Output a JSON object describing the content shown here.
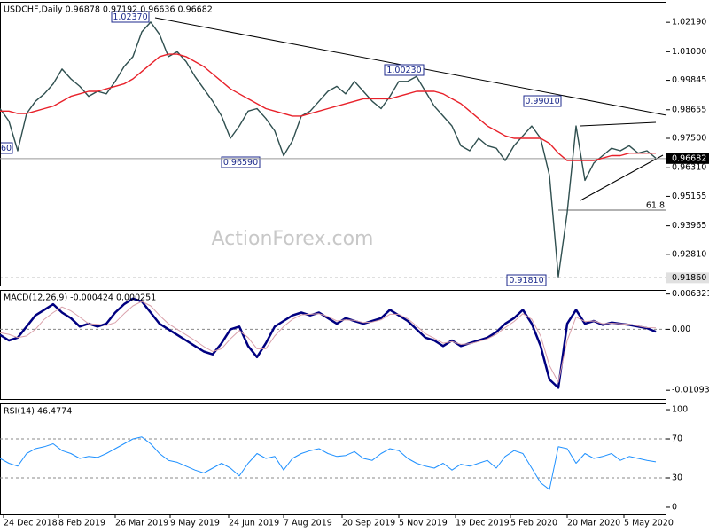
{
  "chart_data": [
    {
      "type": "line",
      "title": "USDCHF,Daily 0.96878 0.97192 0.96636 0.96682",
      "watermark": "ActionForex.com",
      "annotations": [
        "1.02370",
        "0.96590",
        "1.00230",
        "0.99010",
        "0.91810",
        "60",
        "61.8"
      ],
      "x": [
        0,
        5,
        10,
        15,
        20,
        25,
        30,
        35,
        40,
        45,
        50,
        55,
        60,
        65,
        70,
        75,
        80,
        85,
        90,
        95,
        100,
        105,
        110,
        115,
        120,
        125,
        130,
        135,
        140,
        145,
        150,
        155,
        160,
        165,
        170,
        175,
        180,
        185,
        190,
        195,
        200,
        205,
        210,
        215,
        220,
        225,
        230,
        235,
        240,
        245,
        250,
        255,
        260,
        265,
        270,
        275,
        280,
        285,
        290,
        295,
        300,
        305,
        310,
        315,
        320,
        325,
        330,
        335,
        340,
        345,
        350,
        355,
        360,
        365,
        370
      ],
      "xlim": [
        0,
        376
      ],
      "ylim": [
        0.9155,
        1.0302
      ],
      "yticks": [
        {
          "value": 1.0219,
          "label": "1.02190"
        },
        {
          "value": 1.01,
          "label": "1.01000"
        },
        0.99845,
        0.98655,
        {
          "value": 0.975,
          "label": "0.97500"
        },
        {
          "value": 0.9631,
          "label": "0.96310"
        },
        0.95155,
        0.93965,
        {
          "value": 0.9281,
          "label": "0.92810"
        }
      ],
      "price_labels": [
        {
          "value": 0.96682,
          "label": "0.96682",
          "color": "#000000"
        },
        {
          "value": 0.9186,
          "label": "0.91860",
          "color": "#e0e0e0"
        }
      ],
      "series": [
        {
          "color": "#2f4f4f",
          "values": [
            0.987,
            0.982,
            0.97,
            0.985,
            0.99,
            0.993,
            0.997,
            1.003,
            0.999,
            0.996,
            0.992,
            0.994,
            0.993,
            0.998,
            1.004,
            1.008,
            1.018,
            1.022,
            1.017,
            1.008,
            1.01,
            1.006,
            1.0,
            0.995,
            0.99,
            0.984,
            0.975,
            0.98,
            0.986,
            0.987,
            0.983,
            0.978,
            0.968,
            0.974,
            0.984,
            0.986,
            0.99,
            0.994,
            0.996,
            0.993,
            0.998,
            0.994,
            0.99,
            0.987,
            0.992,
            0.998,
            0.998,
            1.0,
            0.994,
            0.988,
            0.984,
            0.98,
            0.972,
            0.97,
            0.975,
            0.972,
            0.971,
            0.966,
            0.972,
            0.976,
            0.98,
            0.975,
            0.96,
            0.919,
            0.945,
            0.98,
            0.958,
            0.965,
            0.968,
            0.971,
            0.97,
            0.972,
            0.969,
            0.97,
            0.967
          ]
        },
        {
          "color": "#e8212a",
          "values": [
            0.986,
            0.986,
            0.985,
            0.985,
            0.986,
            0.987,
            0.988,
            0.99,
            0.992,
            0.993,
            0.994,
            0.994,
            0.995,
            0.996,
            0.997,
            0.999,
            1.002,
            1.005,
            1.008,
            1.009,
            1.009,
            1.008,
            1.006,
            1.004,
            1.001,
            0.998,
            0.995,
            0.993,
            0.991,
            0.989,
            0.987,
            0.986,
            0.985,
            0.984,
            0.984,
            0.985,
            0.986,
            0.987,
            0.988,
            0.989,
            0.99,
            0.991,
            0.991,
            0.991,
            0.991,
            0.992,
            0.993,
            0.994,
            0.994,
            0.994,
            0.993,
            0.991,
            0.989,
            0.986,
            0.983,
            0.98,
            0.978,
            0.976,
            0.975,
            0.975,
            0.975,
            0.975,
            0.973,
            0.969,
            0.966,
            0.966,
            0.966,
            0.966,
            0.967,
            0.968,
            0.968,
            0.969,
            0.969,
            0.969,
            0.969
          ]
        }
      ]
    },
    {
      "type": "line",
      "title": "MACD(12,26,9) -0.000424 0.000251",
      "x": [
        0,
        5,
        10,
        15,
        20,
        25,
        30,
        35,
        40,
        45,
        50,
        55,
        60,
        65,
        70,
        75,
        80,
        85,
        90,
        95,
        100,
        105,
        110,
        115,
        120,
        125,
        130,
        135,
        140,
        145,
        150,
        155,
        160,
        165,
        170,
        175,
        180,
        185,
        190,
        195,
        200,
        205,
        210,
        215,
        220,
        225,
        230,
        235,
        240,
        245,
        250,
        255,
        260,
        265,
        270,
        275,
        280,
        285,
        290,
        295,
        300,
        305,
        310,
        315,
        320,
        325,
        330,
        335,
        340,
        345,
        350,
        355,
        360,
        365,
        370
      ],
      "xlim": [
        0,
        376
      ],
      "ylim": [
        -0.0125,
        0.00706
      ],
      "yticks": [
        0.006321,
        {
          "value": 0,
          "label": "0.00"
        },
        -0.010939
      ],
      "levels": [
        0
      ],
      "series": [
        {
          "color": "#000080",
          "width": 2.5,
          "values": [
            -0.001,
            -0.002,
            -0.0015,
            0.0005,
            0.0025,
            0.0035,
            0.0045,
            0.003,
            0.002,
            0.0005,
            0.001,
            0.0005,
            0.001,
            0.003,
            0.0045,
            0.0055,
            0.005,
            0.003,
            0.001,
            0.0,
            -0.001,
            -0.002,
            -0.003,
            -0.004,
            -0.0045,
            -0.0025,
            0.0,
            0.0005,
            -0.003,
            -0.005,
            -0.0025,
            0.0005,
            0.0015,
            0.0025,
            0.003,
            0.0025,
            0.003,
            0.002,
            0.001,
            0.002,
            0.0015,
            0.001,
            0.0015,
            0.002,
            0.0035,
            0.0025,
            0.0015,
            0.0,
            -0.0015,
            -0.002,
            -0.003,
            -0.002,
            -0.003,
            -0.0025,
            -0.002,
            -0.0015,
            -0.0005,
            0.001,
            0.002,
            0.0035,
            0.001,
            -0.003,
            -0.009,
            -0.0105,
            0.001,
            0.0035,
            0.001,
            0.0015,
            0.0008,
            0.0012,
            0.001,
            0.0008,
            0.0005,
            0.0002,
            -0.000424
          ]
        },
        {
          "color": "#d9a0aa",
          "width": 1,
          "values": [
            -0.0006,
            -0.0009,
            -0.0015,
            -0.0012,
            0.0,
            0.0018,
            0.003,
            0.004,
            0.0033,
            0.0022,
            0.001,
            0.0009,
            0.0007,
            0.0012,
            0.0028,
            0.0042,
            0.005,
            0.0042,
            0.0025,
            0.001,
            0.0,
            -0.001,
            -0.002,
            -0.0031,
            -0.004,
            -0.0035,
            -0.0017,
            -0.0002,
            -0.0015,
            -0.0035,
            -0.0035,
            -0.0012,
            0.0005,
            0.0018,
            0.0026,
            0.0027,
            0.0028,
            0.0023,
            0.0015,
            0.0017,
            0.0016,
            0.0012,
            0.0013,
            0.0017,
            0.0027,
            0.0027,
            0.0019,
            0.0006,
            -0.0008,
            -0.0016,
            -0.0025,
            -0.0022,
            -0.0027,
            -0.0026,
            -0.0022,
            -0.0017,
            -0.0009,
            0.0003,
            0.0014,
            0.0028,
            0.0018,
            -0.0012,
            -0.0065,
            -0.0095,
            -0.002,
            0.0022,
            0.0014,
            0.0015,
            0.001,
            0.0011,
            0.001,
            0.0009,
            0.0006,
            0.0003,
            0.000251
          ]
        }
      ]
    },
    {
      "type": "line",
      "title": "RSI(14) 46.4774",
      "x": [
        0,
        5,
        10,
        15,
        20,
        25,
        30,
        35,
        40,
        45,
        50,
        55,
        60,
        65,
        70,
        75,
        80,
        85,
        90,
        95,
        100,
        105,
        110,
        115,
        120,
        125,
        130,
        135,
        140,
        145,
        150,
        155,
        160,
        165,
        170,
        175,
        180,
        185,
        190,
        195,
        200,
        205,
        210,
        215,
        220,
        225,
        230,
        235,
        240,
        245,
        250,
        255,
        260,
        265,
        270,
        275,
        280,
        285,
        290,
        295,
        300,
        305,
        310,
        315,
        320,
        325,
        330,
        335,
        340,
        345,
        350,
        355,
        360,
        365,
        370
      ],
      "xlim": [
        0,
        376
      ],
      "ylim": [
        -7.3,
        106.4
      ],
      "yticks": [
        100,
        70,
        30,
        0
      ],
      "levels": [
        70,
        30
      ],
      "xticks": [
        {
          "value": 2,
          "label": "24 Dec 2018"
        },
        {
          "value": 33,
          "label": "8 Feb 2019"
        },
        {
          "value": 65,
          "label": "26 Mar 2019"
        },
        {
          "value": 96,
          "label": "9 May 2019"
        },
        {
          "value": 129,
          "label": "24 Jun 2019"
        },
        {
          "value": 160,
          "label": "7 Aug 2019"
        },
        {
          "value": 193,
          "label": "20 Sep 2019"
        },
        {
          "value": 225,
          "label": "5 Nov 2019"
        },
        {
          "value": 257,
          "label": "19 Dec 2019"
        },
        {
          "value": 288,
          "label": "5 Feb 2020"
        },
        {
          "value": 320,
          "label": "20 Mar 2020"
        },
        {
          "value": 352,
          "label": "5 May 2020"
        }
      ],
      "series": [
        {
          "color": "#1e90ff",
          "width": 1,
          "values": [
            50,
            45,
            42,
            55,
            60,
            62,
            65,
            58,
            55,
            50,
            52,
            51,
            55,
            60,
            65,
            70,
            72,
            65,
            55,
            48,
            46,
            42,
            38,
            35,
            40,
            45,
            40,
            32,
            45,
            55,
            50,
            52,
            38,
            50,
            55,
            58,
            60,
            55,
            52,
            53,
            57,
            50,
            48,
            55,
            60,
            58,
            50,
            45,
            42,
            40,
            45,
            38,
            44,
            42,
            45,
            48,
            40,
            52,
            58,
            55,
            40,
            25,
            18,
            62,
            60,
            45,
            55,
            50,
            52,
            55,
            48,
            52,
            50,
            48,
            46.4774
          ]
        }
      ]
    }
  ]
}
